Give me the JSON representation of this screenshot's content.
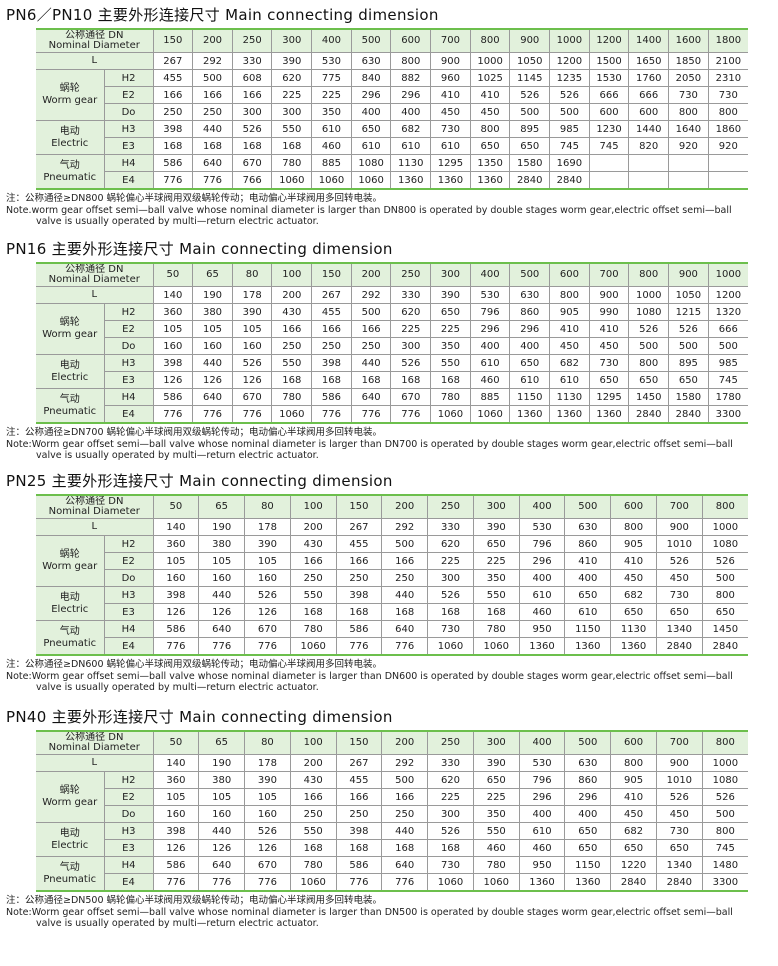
{
  "colors": {
    "accent_green": "#6cbf4c",
    "header_fill": "#e2f1dc"
  },
  "labels": {
    "dn_cn": "公称通径 DN",
    "dn_en": "Nominal Diameter",
    "L": "L",
    "groups": [
      {
        "cn": "蜗轮",
        "en": "Worm gear",
        "rows": [
          "H2",
          "E2",
          "Do"
        ]
      },
      {
        "cn": "电动",
        "en": "Electric",
        "rows": [
          "H3",
          "E3"
        ]
      },
      {
        "cn": "气动",
        "en": "Pneumatic",
        "rows": [
          "H4",
          "E4"
        ]
      }
    ]
  },
  "sections": [
    {
      "title": "PN6／PN10 主要外形连接尺寸 Main connecting dimension",
      "DN": [
        "150",
        "200",
        "250",
        "300",
        "400",
        "500",
        "600",
        "700",
        "800",
        "900",
        "1000",
        "1200",
        "1400",
        "1600",
        "1800"
      ],
      "L": [
        "267",
        "292",
        "330",
        "390",
        "530",
        "630",
        "800",
        "900",
        "1000",
        "1050",
        "1200",
        "1500",
        "1650",
        "1850",
        "2100"
      ],
      "H2": [
        "455",
        "500",
        "608",
        "620",
        "775",
        "840",
        "882",
        "960",
        "1025",
        "1145",
        "1235",
        "1530",
        "1760",
        "2050",
        "2310"
      ],
      "E2": [
        "166",
        "166",
        "166",
        "225",
        "225",
        "296",
        "296",
        "410",
        "410",
        "526",
        "526",
        "666",
        "666",
        "730",
        "730"
      ],
      "Do": [
        "250",
        "250",
        "300",
        "300",
        "350",
        "400",
        "400",
        "450",
        "450",
        "500",
        "500",
        "600",
        "600",
        "800",
        "800"
      ],
      "H3": [
        "398",
        "440",
        "526",
        "550",
        "610",
        "650",
        "682",
        "730",
        "800",
        "895",
        "985",
        "1230",
        "1440",
        "1640",
        "1860"
      ],
      "E3": [
        "168",
        "168",
        "168",
        "168",
        "460",
        "610",
        "610",
        "610",
        "650",
        "650",
        "745",
        "745",
        "820",
        "920",
        "920"
      ],
      "H4": [
        "586",
        "640",
        "670",
        "780",
        "885",
        "1080",
        "1130",
        "1295",
        "1350",
        "1580",
        "1690",
        "",
        "",
        "",
        ""
      ],
      "E4": [
        "776",
        "776",
        "766",
        "1060",
        "1060",
        "1060",
        "1360",
        "1360",
        "1360",
        "2840",
        "2840",
        "",
        "",
        "",
        ""
      ],
      "note_cn": "注：公称通径≥DN800 蜗轮偏心半球阀用双级蜗轮传动；电动偏心半球阀用多回转电装。",
      "note_en1": "Note.worm gear offset semi—ball valve whose nominal diameter is larger than DN800 is operated by double stages worm gear,electric offset semi—ball",
      "note_en2": "valve is usually operated by multi—return electric actuator."
    },
    {
      "title": "PN16 主要外形连接尺寸 Main connecting dimension",
      "DN": [
        "50",
        "65",
        "80",
        "100",
        "150",
        "200",
        "250",
        "300",
        "400",
        "500",
        "600",
        "700",
        "800",
        "900",
        "1000"
      ],
      "L": [
        "140",
        "190",
        "178",
        "200",
        "267",
        "292",
        "330",
        "390",
        "530",
        "630",
        "800",
        "900",
        "1000",
        "1050",
        "1200"
      ],
      "H2": [
        "360",
        "380",
        "390",
        "430",
        "455",
        "500",
        "620",
        "650",
        "796",
        "860",
        "905",
        "990",
        "1080",
        "1215",
        "1320"
      ],
      "E2": [
        "105",
        "105",
        "105",
        "166",
        "166",
        "166",
        "225",
        "225",
        "296",
        "296",
        "410",
        "410",
        "526",
        "526",
        "666"
      ],
      "Do": [
        "160",
        "160",
        "160",
        "250",
        "250",
        "250",
        "300",
        "350",
        "400",
        "400",
        "450",
        "450",
        "500",
        "500",
        "500"
      ],
      "H3": [
        "398",
        "440",
        "526",
        "550",
        "398",
        "440",
        "526",
        "550",
        "610",
        "650",
        "682",
        "730",
        "800",
        "895",
        "985"
      ],
      "E3": [
        "126",
        "126",
        "126",
        "168",
        "168",
        "168",
        "168",
        "168",
        "460",
        "610",
        "610",
        "650",
        "650",
        "650",
        "745"
      ],
      "H4": [
        "586",
        "640",
        "670",
        "780",
        "586",
        "640",
        "670",
        "780",
        "885",
        "1150",
        "1130",
        "1295",
        "1450",
        "1580",
        "1780"
      ],
      "E4": [
        "776",
        "776",
        "776",
        "1060",
        "776",
        "776",
        "776",
        "1060",
        "1060",
        "1360",
        "1360",
        "1360",
        "2840",
        "2840",
        "3300"
      ],
      "note_cn": "注：公称通径≥DN700 蜗轮偏心半球阀用双级蜗轮传动；电动偏心半球阀用多回转电装。",
      "note_en1": "Note:Worm gear offset semi—ball valve whose nominal diameter is larger than DN700 is operated by double stages worm gear,electric offset semi—ball",
      "note_en2": "valve is usually operated by multi—return electric actuator."
    },
    {
      "title": "PN25 主要外形连接尺寸 Main connecting dimension",
      "DN": [
        "50",
        "65",
        "80",
        "100",
        "150",
        "200",
        "250",
        "300",
        "400",
        "500",
        "600",
        "700",
        "800"
      ],
      "L": [
        "140",
        "190",
        "178",
        "200",
        "267",
        "292",
        "330",
        "390",
        "530",
        "630",
        "800",
        "900",
        "1000"
      ],
      "H2": [
        "360",
        "380",
        "390",
        "430",
        "455",
        "500",
        "620",
        "650",
        "796",
        "860",
        "905",
        "1010",
        "1080"
      ],
      "E2": [
        "105",
        "105",
        "105",
        "166",
        "166",
        "166",
        "225",
        "225",
        "296",
        "410",
        "410",
        "526",
        "526"
      ],
      "Do": [
        "160",
        "160",
        "160",
        "250",
        "250",
        "250",
        "300",
        "350",
        "400",
        "400",
        "450",
        "450",
        "500"
      ],
      "H3": [
        "398",
        "440",
        "526",
        "550",
        "398",
        "440",
        "526",
        "550",
        "610",
        "650",
        "682",
        "730",
        "800"
      ],
      "E3": [
        "126",
        "126",
        "126",
        "168",
        "168",
        "168",
        "168",
        "168",
        "460",
        "610",
        "650",
        "650",
        "650"
      ],
      "H4": [
        "586",
        "640",
        "670",
        "780",
        "586",
        "640",
        "730",
        "780",
        "950",
        "1150",
        "1130",
        "1340",
        "1450"
      ],
      "E4": [
        "776",
        "776",
        "776",
        "1060",
        "776",
        "776",
        "1060",
        "1060",
        "1360",
        "1360",
        "1360",
        "2840",
        "2840"
      ],
      "note_cn": "注：公称通径≥DN600 蜗轮偏心半球阀用双级蜗轮传动；电动偏心半球阀用多回转电装。",
      "note_en1": "Note:Worm gear offset semi—ball valve whose nominal diameter is larger than DN600 is operated by double stages worm gear,electric offset semi—ball",
      "note_en2": "valve is usually operated by multi—return electric actuator."
    },
    {
      "title": "PN40 主要外形连接尺寸 Main connecting dimension",
      "DN": [
        "50",
        "65",
        "80",
        "100",
        "150",
        "200",
        "250",
        "300",
        "400",
        "500",
        "600",
        "700",
        "800"
      ],
      "L": [
        "140",
        "190",
        "178",
        "200",
        "267",
        "292",
        "330",
        "390",
        "530",
        "630",
        "800",
        "900",
        "1000"
      ],
      "H2": [
        "360",
        "380",
        "390",
        "430",
        "455",
        "500",
        "620",
        "650",
        "796",
        "860",
        "905",
        "1010",
        "1080"
      ],
      "E2": [
        "105",
        "105",
        "105",
        "166",
        "166",
        "166",
        "225",
        "225",
        "296",
        "296",
        "410",
        "526",
        "526"
      ],
      "Do": [
        "160",
        "160",
        "160",
        "250",
        "250",
        "250",
        "300",
        "350",
        "400",
        "400",
        "450",
        "450",
        "500"
      ],
      "H3": [
        "398",
        "440",
        "526",
        "550",
        "398",
        "440",
        "526",
        "550",
        "610",
        "650",
        "682",
        "730",
        "800"
      ],
      "E3": [
        "126",
        "126",
        "126",
        "168",
        "168",
        "168",
        "168",
        "460",
        "460",
        "650",
        "650",
        "650",
        "745"
      ],
      "H4": [
        "586",
        "640",
        "670",
        "780",
        "586",
        "640",
        "730",
        "780",
        "950",
        "1150",
        "1220",
        "1340",
        "1480"
      ],
      "E4": [
        "776",
        "776",
        "776",
        "1060",
        "776",
        "776",
        "1060",
        "1060",
        "1360",
        "1360",
        "2840",
        "2840",
        "3300"
      ],
      "note_cn": "注：公称通径≥DN500 蜗轮偏心半球阀用双级蜗轮传动；电动偏心半球阀用多回转电装。",
      "note_en1": "Note:Worm gear offset semi—ball valve whose nominal diameter is larger than DN500 is operated by double stages worm gear,electric offset semi—ball",
      "note_en2": "valve is usually operated by multi—return electric actuator."
    }
  ]
}
